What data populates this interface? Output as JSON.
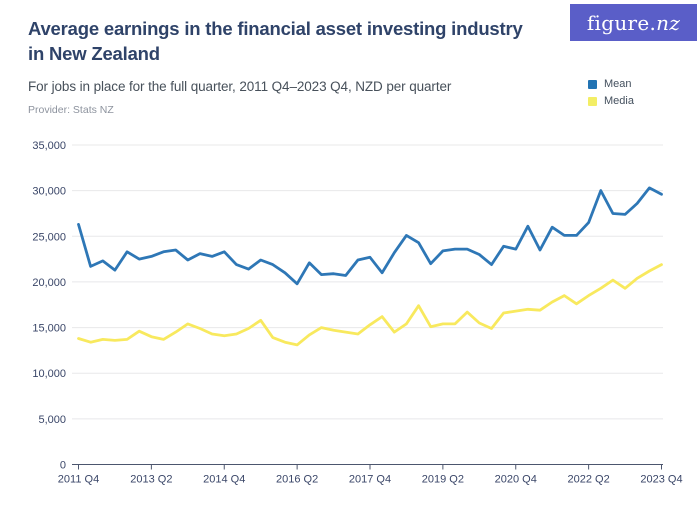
{
  "logo": {
    "prefix": "figure.",
    "suffix": "nz",
    "background": "#5a5ec8",
    "text_color": "#ffffff"
  },
  "header": {
    "title_line1": "Average earnings in the financial asset investing industry",
    "title_line2": "in New Zealand",
    "title_color": "#2f4369",
    "subtitle": "For jobs in place for the full quarter, 2011 Q4–2023 Q4, NZD per quarter",
    "subtitle_color": "#47505a",
    "provider": "Provider: Stats NZ",
    "provider_color": "#8d939e"
  },
  "legend": {
    "position": "top-right",
    "items": [
      {
        "label": "Mean",
        "color": "#2273b3"
      },
      {
        "label": "Media",
        "color": "#f3ee65"
      }
    ]
  },
  "chart_data": {
    "type": "line",
    "title": "Average earnings in the financial asset investing industry in New Zealand",
    "subtitle": "For jobs in place for the full quarter, 2011 Q4–2023 Q4, NZD per quarter",
    "provider": "Provider: Stats NZ",
    "xlabel": "",
    "ylabel": "",
    "ylim": [
      0,
      35000
    ],
    "grid": true,
    "legend_position": "top-right",
    "axis_label_color": "#3a4668",
    "gridline_color": "#e8e8ea",
    "axis_line_color": "#4c566e",
    "y_ticks": [
      0,
      5000,
      10000,
      15000,
      20000,
      25000,
      30000,
      35000
    ],
    "x_tick_indices": [
      0,
      6,
      12,
      18,
      24,
      30,
      36,
      42,
      48
    ],
    "x_tick_labels": [
      "2011 Q4",
      "2013 Q2",
      "2014 Q4",
      "2016 Q2",
      "2017 Q4",
      "2019 Q2",
      "2020 Q4",
      "2022 Q2",
      "2023 Q4"
    ],
    "x": [
      "2011 Q4",
      "2012 Q1",
      "2012 Q2",
      "2012 Q3",
      "2012 Q4",
      "2013 Q1",
      "2013 Q2",
      "2013 Q3",
      "2013 Q4",
      "2014 Q1",
      "2014 Q2",
      "2014 Q3",
      "2014 Q4",
      "2015 Q1",
      "2015 Q2",
      "2015 Q3",
      "2015 Q4",
      "2016 Q1",
      "2016 Q2",
      "2016 Q3",
      "2016 Q4",
      "2017 Q1",
      "2017 Q2",
      "2017 Q3",
      "2017 Q4",
      "2018 Q1",
      "2018 Q2",
      "2018 Q3",
      "2018 Q4",
      "2019 Q1",
      "2019 Q2",
      "2019 Q3",
      "2019 Q4",
      "2020 Q1",
      "2020 Q2",
      "2020 Q3",
      "2020 Q4",
      "2021 Q1",
      "2021 Q2",
      "2021 Q3",
      "2021 Q4",
      "2022 Q1",
      "2022 Q2",
      "2022 Q3",
      "2022 Q4",
      "2023 Q1",
      "2023 Q2",
      "2023 Q3",
      "2023 Q4"
    ],
    "series": [
      {
        "name": "Mean",
        "color": "#2e77b6",
        "values": [
          26300,
          21700,
          22300,
          21300,
          23300,
          22500,
          22800,
          23300,
          23500,
          22400,
          23100,
          22800,
          23300,
          21900,
          21400,
          22400,
          21900,
          21000,
          19800,
          22100,
          20800,
          20900,
          20700,
          22400,
          22700,
          21000,
          23200,
          25100,
          24300,
          22000,
          23400,
          23600,
          23600,
          23000,
          21900,
          23900,
          23600,
          26100,
          23500,
          26000,
          25100,
          25100,
          26500,
          30000,
          27500,
          27400,
          28600,
          30300,
          29600
        ]
      },
      {
        "name": "Media",
        "color": "#f8e95e",
        "values": [
          13800,
          13400,
          13700,
          13600,
          13700,
          14600,
          14000,
          13700,
          14500,
          15400,
          14900,
          14300,
          14100,
          14300,
          14900,
          15800,
          13900,
          13400,
          13100,
          14200,
          15000,
          14700,
          14500,
          14300,
          15300,
          16200,
          14500,
          15400,
          17400,
          15100,
          15400,
          15400,
          16700,
          15500,
          14900,
          16600,
          16800,
          17000,
          16900,
          17800,
          18500,
          17600,
          18500,
          19300,
          20200,
          19300,
          20400,
          21200,
          21900
        ]
      }
    ]
  }
}
